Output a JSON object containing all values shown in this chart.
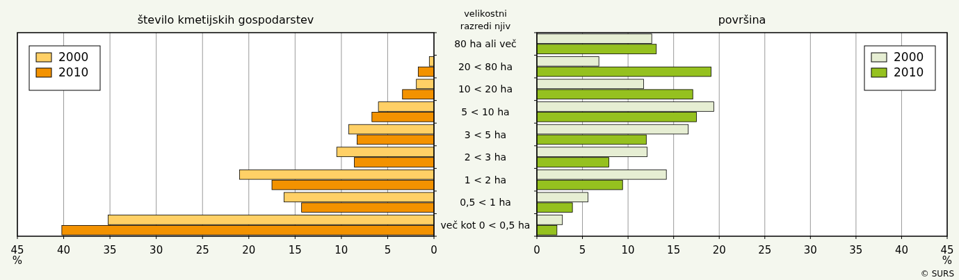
{
  "chart_data": [
    {
      "type": "bar",
      "orientation": "horizontal",
      "title": "število kmetijskih gospodarstev",
      "ylabel": "velikostni razredi njiv",
      "xlabel": "%",
      "categories": [
        "80 ha ali več",
        "20 < 80 ha",
        "10 < 20 ha",
        "5 < 10 ha",
        "3 < 5 ha",
        "2 < 3 ha",
        "1 < 2 ha",
        "0,5 < 1 ha",
        "več kot 0 < 0,5 ha"
      ],
      "series": [
        {
          "name": "2000",
          "color": "#ffd066",
          "values": [
            null,
            0.5,
            1.9,
            6.0,
            9.2,
            10.5,
            21.0,
            16.2,
            35.2
          ]
        },
        {
          "name": "2010",
          "color": "#f39200",
          "values": [
            null,
            1.7,
            3.4,
            6.7,
            8.3,
            8.6,
            17.5,
            14.3,
            40.2
          ]
        }
      ],
      "xlim": [
        45,
        0
      ],
      "xticks": [
        45,
        40,
        35,
        30,
        25,
        20,
        15,
        10,
        5,
        0
      ],
      "grid": "x",
      "legend": "top left"
    },
    {
      "type": "bar",
      "orientation": "horizontal",
      "title": "površina",
      "xlabel": "%",
      "series": [
        {
          "name": "2000",
          "color": "#e6eed3",
          "values": [
            12.6,
            6.8,
            11.7,
            19.4,
            16.6,
            12.1,
            14.2,
            5.6,
            2.8
          ]
        },
        {
          "name": "2010",
          "color": "#95c11f",
          "values": [
            13.1,
            19.1,
            17.1,
            17.5,
            12.0,
            7.9,
            9.4,
            3.9,
            2.2
          ]
        }
      ],
      "xlim": [
        0,
        45
      ],
      "xticks": [
        0,
        5,
        10,
        15,
        20,
        25,
        30,
        35,
        40,
        45
      ],
      "grid": "x",
      "legend": "top right",
      "tick_labels": "x",
      "annotations": [
        "© SURS"
      ]
    }
  ]
}
